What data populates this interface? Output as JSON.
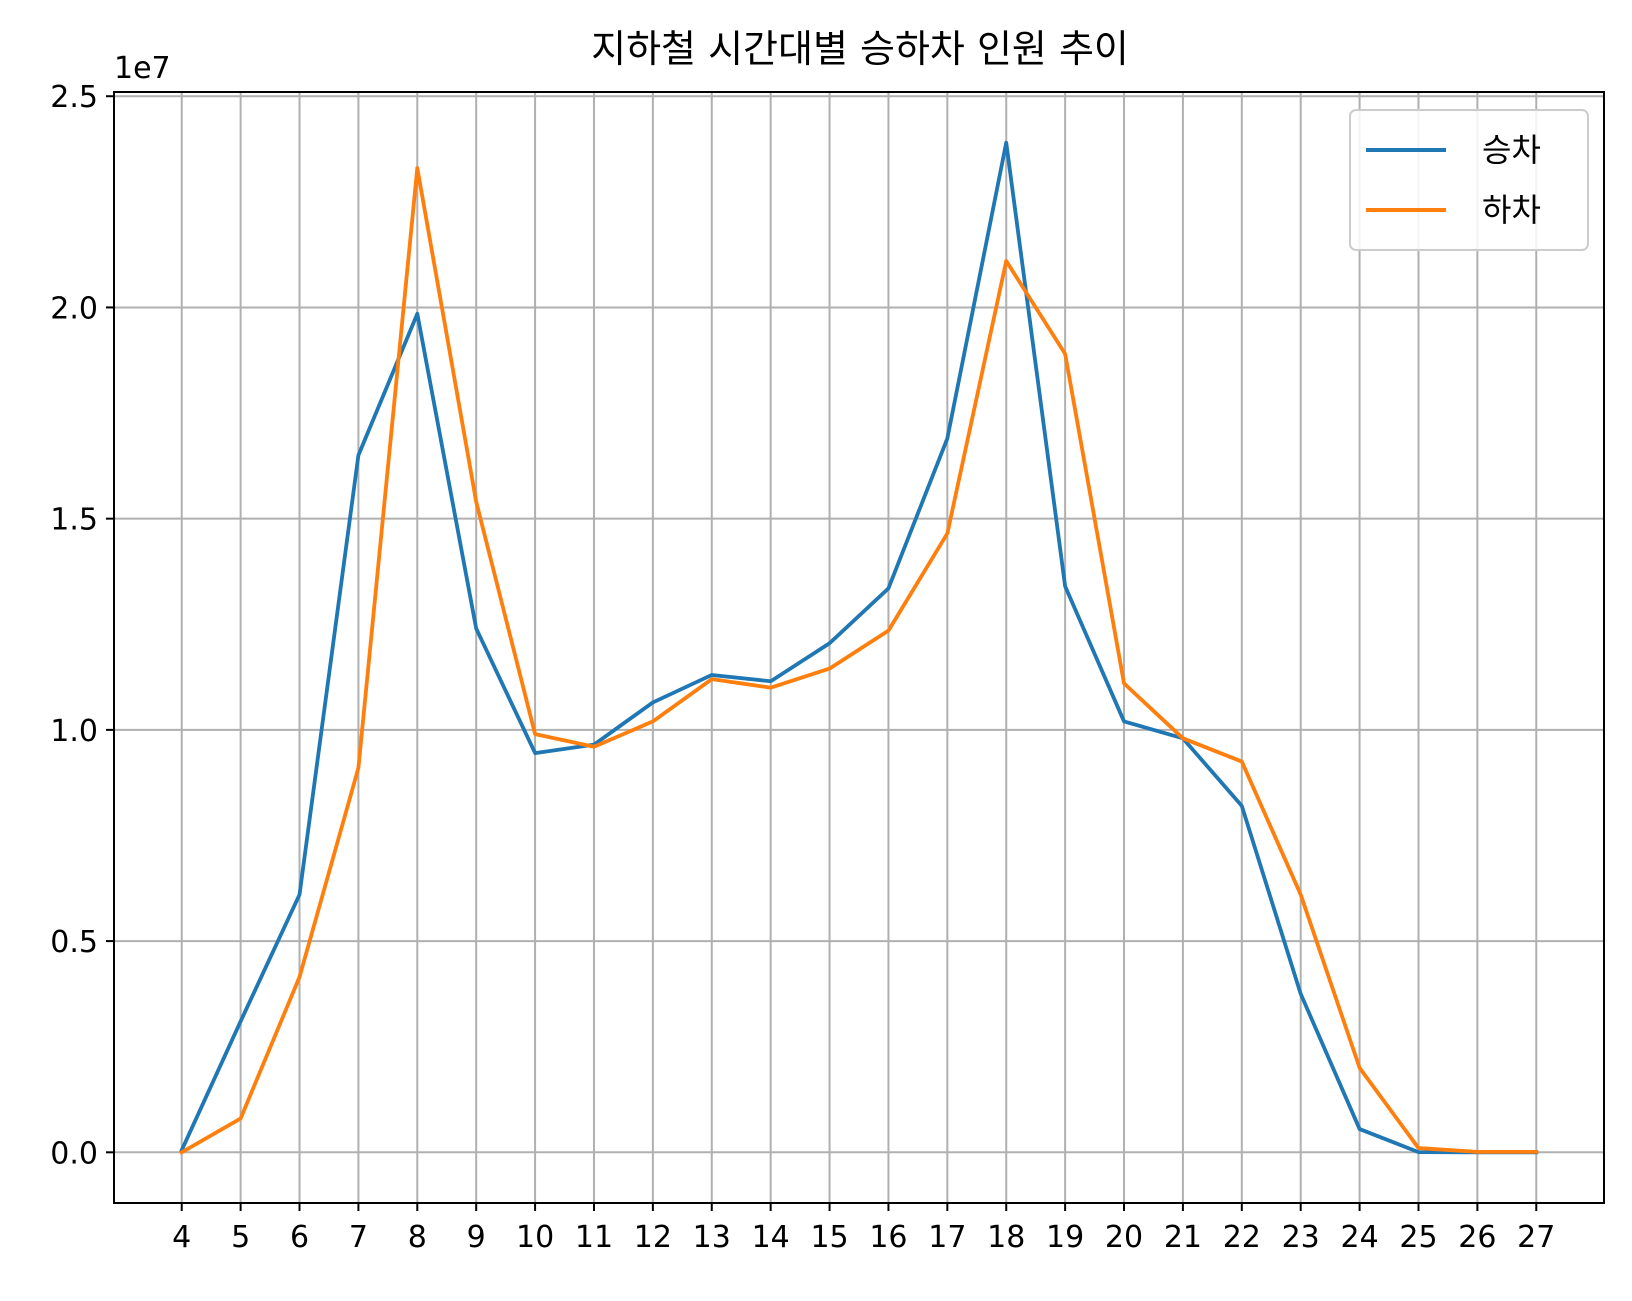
{
  "chart_data": {
    "type": "line",
    "title": "지하철 시간대별 승하차 인원 추이",
    "xlabel": "",
    "ylabel": "",
    "y_offset_label": "1e7",
    "x": [
      4,
      5,
      6,
      7,
      8,
      9,
      10,
      11,
      12,
      13,
      14,
      15,
      16,
      17,
      18,
      19,
      20,
      21,
      22,
      23,
      24,
      25,
      26,
      27
    ],
    "xlim": [
      2.85,
      28.15
    ],
    "ylim": [
      -1200000,
      25100000
    ],
    "yticks": [
      0,
      5000000,
      10000000,
      15000000,
      20000000,
      25000000
    ],
    "ytick_labels": [
      "0.0",
      "0.5",
      "1.0",
      "1.5",
      "2.0",
      "2.5"
    ],
    "grid": true,
    "legend_position": "top-right",
    "series": [
      {
        "name": "승차",
        "color": "#1f77b4",
        "values": [
          50000,
          3100000,
          6100000,
          16500000,
          19850000,
          12400000,
          9450000,
          9650000,
          10650000,
          11300000,
          11150000,
          12050000,
          13350000,
          16900000,
          23900000,
          13400000,
          10200000,
          9800000,
          8200000,
          3750000,
          550000,
          5000,
          0,
          0
        ]
      },
      {
        "name": "하차",
        "color": "#ff7f0e",
        "values": [
          0,
          800000,
          4150000,
          9100000,
          23300000,
          15400000,
          9900000,
          9600000,
          10200000,
          11200000,
          11000000,
          11450000,
          12350000,
          14650000,
          21100000,
          18900000,
          11100000,
          9800000,
          9250000,
          6100000,
          2000000,
          100000,
          10000,
          10000
        ]
      }
    ]
  }
}
